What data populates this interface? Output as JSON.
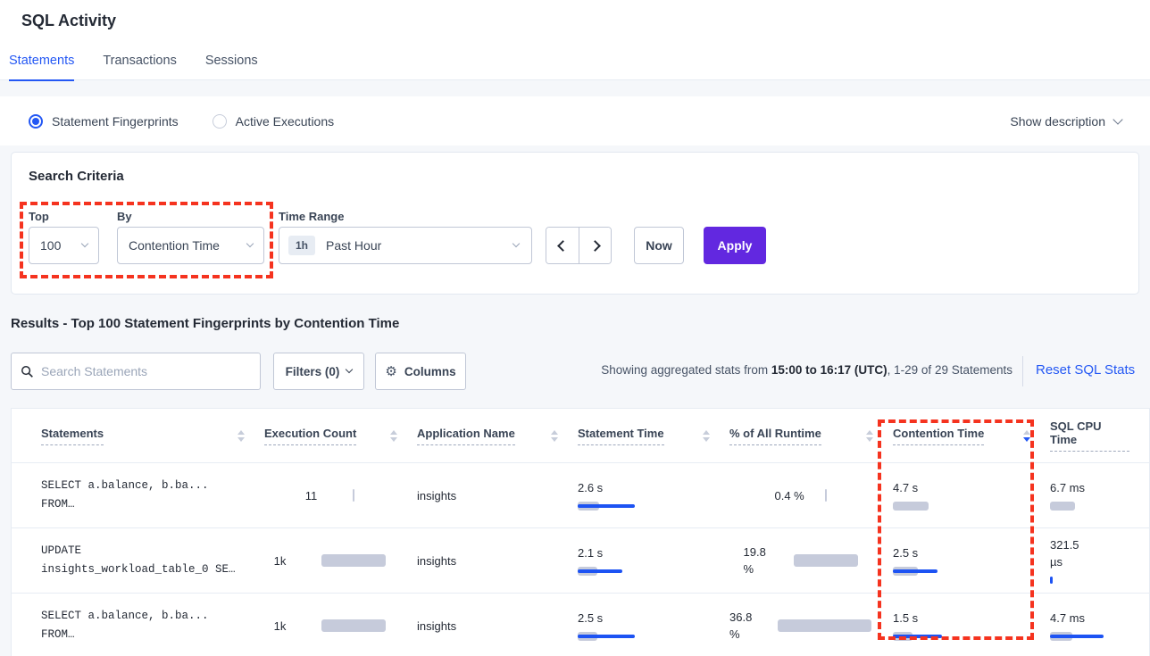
{
  "page": {
    "title": "SQL Activity"
  },
  "tabs": [
    {
      "label": "Statements",
      "active": true
    },
    {
      "label": "Transactions",
      "active": false
    },
    {
      "label": "Sessions",
      "active": false
    }
  ],
  "view": {
    "options": [
      {
        "label": "Statement Fingerprints",
        "selected": true
      },
      {
        "label": "Active Executions",
        "selected": false
      }
    ],
    "show_description": "Show description"
  },
  "search_criteria": {
    "heading": "Search Criteria",
    "top": {
      "label": "Top",
      "value": "100"
    },
    "by": {
      "label": "By",
      "value": "Contention Time"
    },
    "time_range": {
      "label": "Time Range",
      "badge": "1h",
      "value": "Past Hour"
    },
    "now_label": "Now",
    "apply_label": "Apply"
  },
  "results": {
    "heading": "Results - Top 100 Statement Fingerprints by Contention Time",
    "search_placeholder": "Search Statements",
    "filters_label": "Filters (0)",
    "columns_label": "Columns",
    "stats_prefix": "Showing aggregated stats from ",
    "stats_bold": "15:00 to 16:17 (UTC)",
    "stats_suffix": ", 1-29 of 29 Statements",
    "reset_label": "Reset SQL Stats"
  },
  "icons": {
    "gear": "⚙"
  },
  "table": {
    "headers": [
      {
        "label": "Statements",
        "sortable": true
      },
      {
        "label": "Execution Count",
        "sortable": true
      },
      {
        "label": "Application Name",
        "sortable": true
      },
      {
        "label": "Statement Time",
        "sortable": true
      },
      {
        "label": "% of All Runtime",
        "sortable": true
      },
      {
        "label": "Contention Time",
        "sortable": true,
        "sorted": "desc"
      },
      {
        "label": "SQL CPU Time",
        "sortable": false
      }
    ],
    "rows": [
      {
        "statement": {
          "line1": "SELECT a.balance, b.ba...",
          "line2": "FROM…"
        },
        "exec": {
          "value": "11",
          "bar": 2
        },
        "app": "insights",
        "stmt_time": {
          "value": "2.6 s",
          "gray": 24,
          "blue": 64
        },
        "runtime": {
          "line1": "0.4 %",
          "line2": "",
          "bar": 2
        },
        "contention": {
          "value": "4.7 s",
          "gray": 40,
          "blue": 0
        },
        "cpu": {
          "line1": "6.7 ms",
          "line2": "",
          "gray": 28,
          "blue": 0
        }
      },
      {
        "statement": {
          "line1": "UPDATE",
          "line2": "insights_workload_table_0 SE…"
        },
        "exec": {
          "value": "1k",
          "bar": 72
        },
        "app": "insights",
        "stmt_time": {
          "value": "2.1 s",
          "gray": 22,
          "blue": 50
        },
        "runtime": {
          "line1": "19.8",
          "line2": "%",
          "bar": 72
        },
        "contention": {
          "value": "2.5 s",
          "gray": 28,
          "blue": 50
        },
        "cpu": {
          "line1": "321.5",
          "line2": "µs",
          "gray": 0,
          "blue": 3
        }
      },
      {
        "statement": {
          "line1": "SELECT a.balance, b.ba...",
          "line2": "FROM…"
        },
        "exec": {
          "value": "1k",
          "bar": 72
        },
        "app": "insights",
        "stmt_time": {
          "value": "2.5 s",
          "gray": 22,
          "blue": 64
        },
        "runtime": {
          "line1": "36.8",
          "line2": "%",
          "bar": 110
        },
        "contention": {
          "value": "1.5 s",
          "gray": 22,
          "blue": 55
        },
        "cpu": {
          "line1": "4.7 ms",
          "line2": "",
          "gray": 25,
          "blue": 60
        }
      }
    ]
  },
  "colors": {
    "accent": "#2458f4",
    "purple": "#6228e0",
    "annot-red": "#f5331f",
    "bar-gray": "#c6cbdb",
    "bar-blue": "#1d53f3"
  }
}
